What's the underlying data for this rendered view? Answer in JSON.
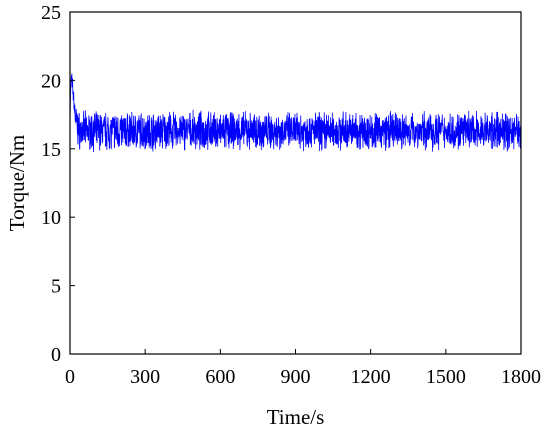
{
  "chart_data": {
    "type": "line",
    "title": "",
    "xlabel": "Time/s",
    "ylabel": "Torque/Nm",
    "xlim": [
      0,
      1800
    ],
    "ylim": [
      0,
      25
    ],
    "xticks": [
      0,
      300,
      600,
      900,
      1200,
      1500,
      1800
    ],
    "xtick_labels": [
      "0",
      "300",
      "600",
      "900",
      "1200",
      "1500",
      "1800"
    ],
    "yticks": [
      0,
      5,
      10,
      15,
      20,
      25
    ],
    "ytick_labels": [
      "0",
      "5",
      "10",
      "15",
      "20",
      "25"
    ],
    "grid": false,
    "legend": "none",
    "series": [
      {
        "color": "#0000ff",
        "description_of_signal": "noisy torque signal",
        "x": [
          0,
          5,
          10,
          15,
          20,
          25,
          30,
          40,
          50,
          60,
          80,
          100,
          150,
          200,
          300,
          400,
          500,
          600,
          700,
          800,
          900,
          1000,
          1100,
          1200,
          1300,
          1400,
          1500,
          1600,
          1700,
          1800
        ],
        "y": [
          17.5,
          20.3,
          19.5,
          18.6,
          17.6,
          16.9,
          16.5,
          16.3,
          16.3,
          16.3,
          16.3,
          16.3,
          16.3,
          16.3,
          16.3,
          16.3,
          16.3,
          16.3,
          16.3,
          16.3,
          16.3,
          16.3,
          16.3,
          16.3,
          16.3,
          16.3,
          16.3,
          16.3,
          16.3,
          16.3
        ],
        "noise_range": [
          14.2,
          18.5
        ]
      }
    ]
  }
}
